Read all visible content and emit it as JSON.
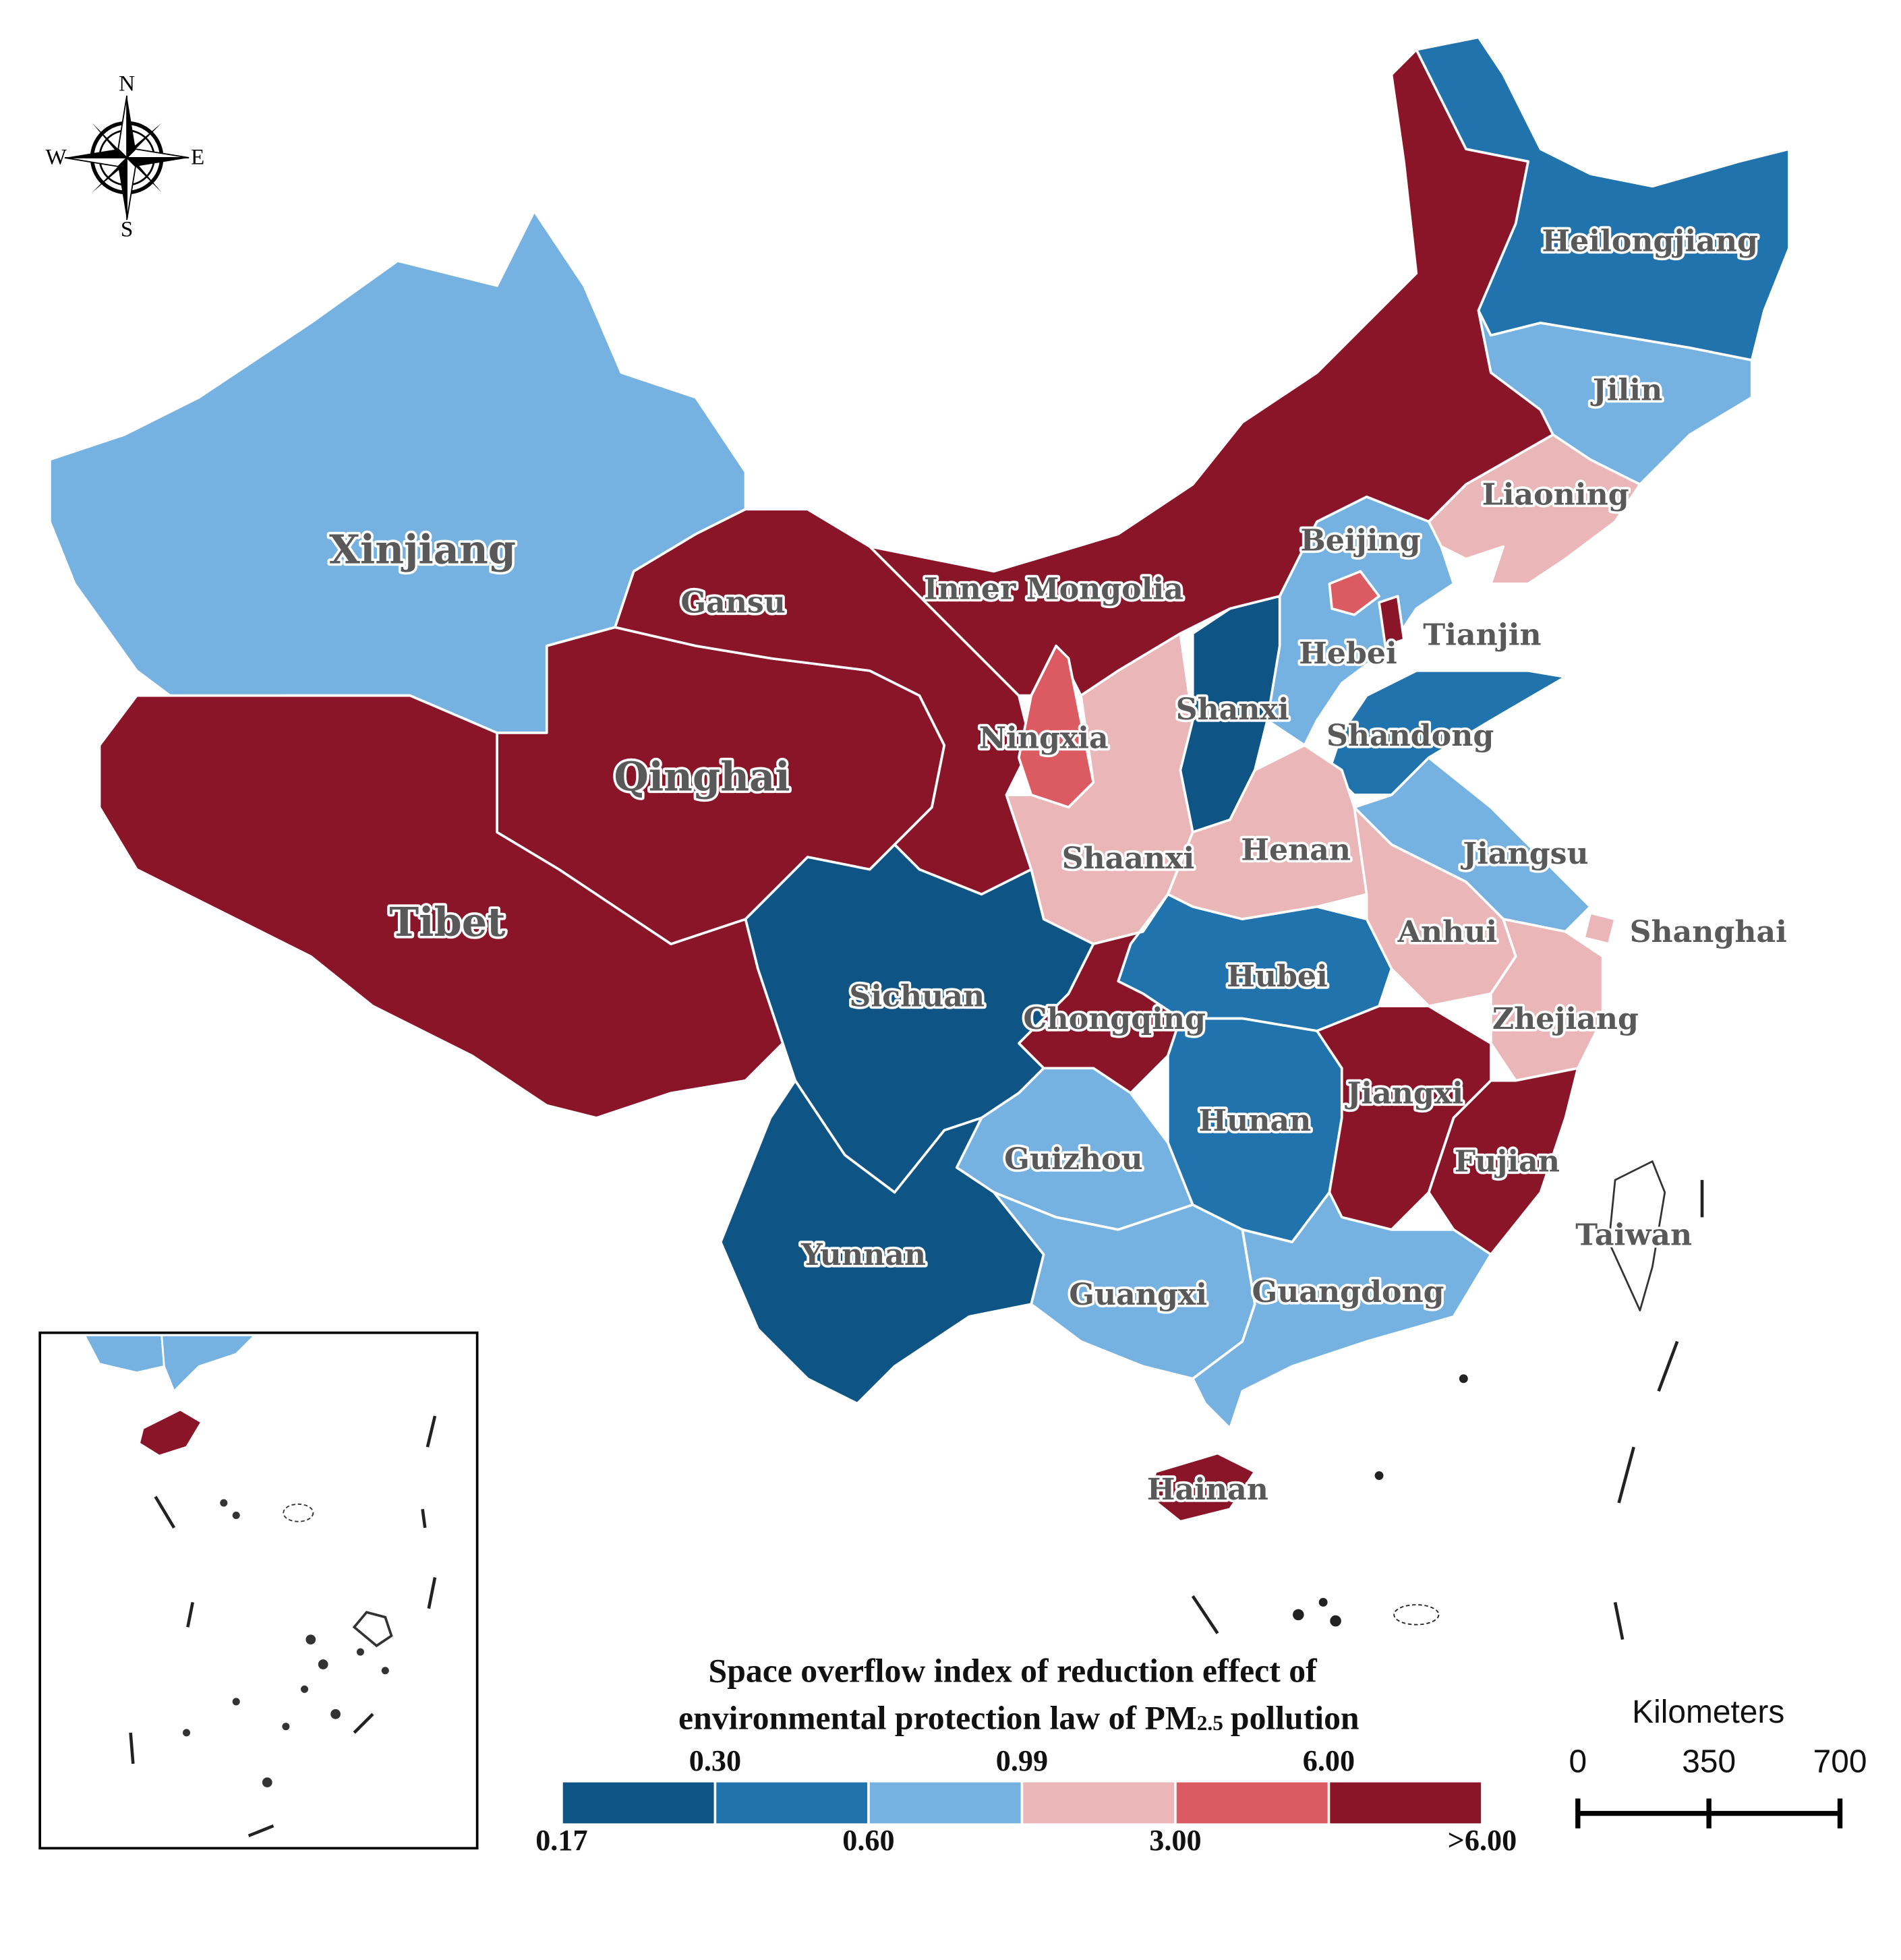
{
  "compass": {
    "n": "N",
    "s": "S",
    "e": "E",
    "w": "W"
  },
  "provinces": [
    {
      "name": "Xinjiang",
      "class": 2
    },
    {
      "name": "Tibet",
      "class": 5
    },
    {
      "name": "Qinghai",
      "class": 5
    },
    {
      "name": "Gansu",
      "class": 5
    },
    {
      "name": "Inner Mongolia",
      "class": 5
    },
    {
      "name": "Heilongjiang",
      "class": 1
    },
    {
      "name": "Jilin",
      "class": 2
    },
    {
      "name": "Liaoning",
      "class": 3
    },
    {
      "name": "Hebei",
      "class": 2
    },
    {
      "name": "Beijing",
      "class": 4
    },
    {
      "name": "Tianjin",
      "class": 5
    },
    {
      "name": "Shanxi",
      "class": 0
    },
    {
      "name": "Shandong",
      "class": 1
    },
    {
      "name": "Ningxia",
      "class": 4
    },
    {
      "name": "Shaanxi",
      "class": 3
    },
    {
      "name": "Henan",
      "class": 3
    },
    {
      "name": "Jiangsu",
      "class": 2
    },
    {
      "name": "Anhui",
      "class": 3
    },
    {
      "name": "Shanghai",
      "class": 3
    },
    {
      "name": "Zhejiang",
      "class": 3
    },
    {
      "name": "Hubei",
      "class": 1
    },
    {
      "name": "Chongqing",
      "class": 5
    },
    {
      "name": "Sichuan",
      "class": 0
    },
    {
      "name": "Hunan",
      "class": 1
    },
    {
      "name": "Jiangxi",
      "class": 5
    },
    {
      "name": "Fujian",
      "class": 5
    },
    {
      "name": "Guizhou",
      "class": 2
    },
    {
      "name": "Yunnan",
      "class": 0
    },
    {
      "name": "Guangxi",
      "class": 2
    },
    {
      "name": "Guangdong",
      "class": 2
    },
    {
      "name": "Hainan",
      "class": 5
    },
    {
      "name": "Taiwan"
    }
  ],
  "legend": {
    "title": [
      "Space overflow index of reduction effect of",
      "environmental protection law of PM",
      "2.5",
      "pollution"
    ],
    "colors": [
      "#0e5586",
      "#2173ad",
      "#75b2e2",
      "#ebb6b7",
      "#dc5a61",
      "#8a1529"
    ],
    "boundary_labels": [
      "0.17",
      "0.30",
      "0.60",
      "0.99",
      "3.00",
      "6.00",
      ">6.00"
    ]
  },
  "scale_bar": {
    "title": "Kilometers",
    "ticks": [
      0,
      350,
      700
    ]
  }
}
